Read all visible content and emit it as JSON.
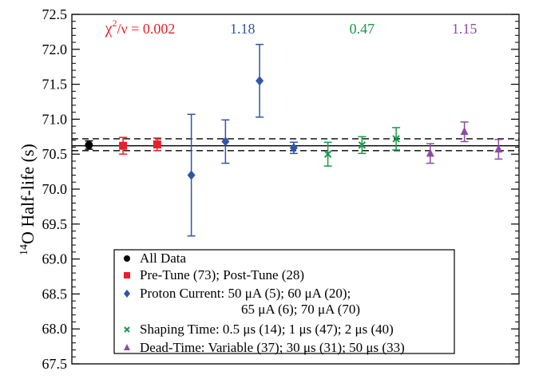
{
  "chart_data": {
    "type": "scatter",
    "ylabel_sup": "14",
    "ylabel_main": "O Half-life (s)",
    "ylim": [
      67.5,
      72.5
    ],
    "yticks": [
      "67.5",
      "68.0",
      "68.5",
      "69.0",
      "69.5",
      "70.0",
      "70.5",
      "71.0",
      "71.5",
      "72.0",
      "72.5"
    ],
    "grid": false,
    "legend_position": "bottom",
    "reference": {
      "value": 70.62,
      "lower": 70.55,
      "upper": 70.72
    },
    "series": [
      {
        "name": "All Data",
        "marker": "circle",
        "color": "#000000",
        "points": [
          {
            "x": 1,
            "y": 70.63,
            "err": 0.06
          }
        ]
      },
      {
        "name": "Pre-Tune (73); Post-Tune (28)",
        "marker": "square",
        "color": "#e8202a",
        "points": [
          {
            "x": 2,
            "y": 70.62,
            "err": 0.12
          },
          {
            "x": 3,
            "y": 70.64,
            "err": 0.09
          }
        ]
      },
      {
        "name": "Proton Current: 50 μA (5); 60 μA (20);",
        "name_line2": "65 μA (6); 70 μA (70)",
        "marker": "diamond",
        "color": "#2f56a8",
        "points": [
          {
            "x": 4,
            "y": 70.2,
            "err": 0.87
          },
          {
            "x": 5,
            "y": 70.68,
            "err": 0.31
          },
          {
            "x": 6,
            "y": 71.55,
            "err": 0.52
          },
          {
            "x": 7,
            "y": 70.59,
            "err": 0.08
          }
        ]
      },
      {
        "name": "Shaping Time: 0.5 μs (14); 1 μs (47); 2 μs (40)",
        "marker": "x",
        "color": "#169a46",
        "points": [
          {
            "x": 8,
            "y": 70.5,
            "err": 0.17
          },
          {
            "x": 9,
            "y": 70.63,
            "err": 0.12
          },
          {
            "x": 10,
            "y": 70.72,
            "err": 0.16
          }
        ]
      },
      {
        "name": "Dead-Time: Variable (37); 30 μs (31); 50 μs (33)",
        "marker": "triangle",
        "color": "#8e4aa4",
        "points": [
          {
            "x": 11,
            "y": 70.51,
            "err": 0.14
          },
          {
            "x": 12,
            "y": 70.82,
            "err": 0.14
          },
          {
            "x": 13,
            "y": 70.57,
            "err": 0.14
          }
        ]
      }
    ],
    "annotations": [
      {
        "chi": "χ",
        "sup": "2",
        "rest": "/ν = 0.002",
        "color": "#e8202a",
        "x": 2.5
      },
      {
        "text": "1.18",
        "color": "#2f56a8",
        "x": 5.5
      },
      {
        "text": "0.47",
        "color": "#169a46",
        "x": 9
      },
      {
        "text": "1.15",
        "color": "#8e4aa4",
        "x": 12
      }
    ],
    "xlim": [
      0.5,
      13.6
    ]
  }
}
